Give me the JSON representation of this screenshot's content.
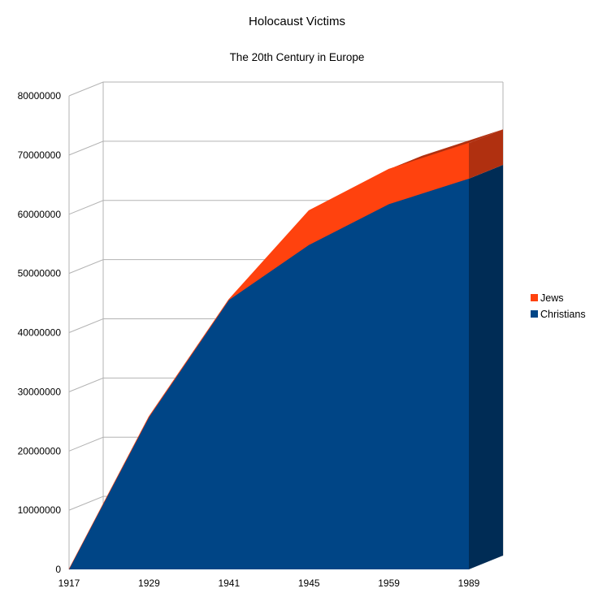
{
  "colors": {
    "jews": "#ff420e",
    "jews_side": "#b03010",
    "christians": "#004586",
    "christians_side": "#002c55",
    "grid": "#b3b3b3"
  },
  "chart_data": {
    "type": "area",
    "stacked": true,
    "three_d": true,
    "title": "Holocaust Victims",
    "subtitle": "The 20th Century in Europe",
    "categories": [
      "1917",
      "1929",
      "1941",
      "1945",
      "1959",
      "1989"
    ],
    "series": [
      {
        "name": "Christians",
        "values": [
          0,
          25700000,
          45500000,
          54800000,
          61700000,
          66000000
        ]
      },
      {
        "name": "Jews",
        "values": [
          0,
          100000,
          100000,
          5800000,
          5900000,
          6000000
        ]
      }
    ],
    "ylim": [
      0,
      80000000
    ],
    "y_ticks": [
      "0",
      "10000000",
      "20000000",
      "30000000",
      "40000000",
      "50000000",
      "60000000",
      "70000000",
      "80000000"
    ],
    "grid": true,
    "legend": {
      "position": "right",
      "entries": [
        "Jews",
        "Christians"
      ]
    }
  }
}
